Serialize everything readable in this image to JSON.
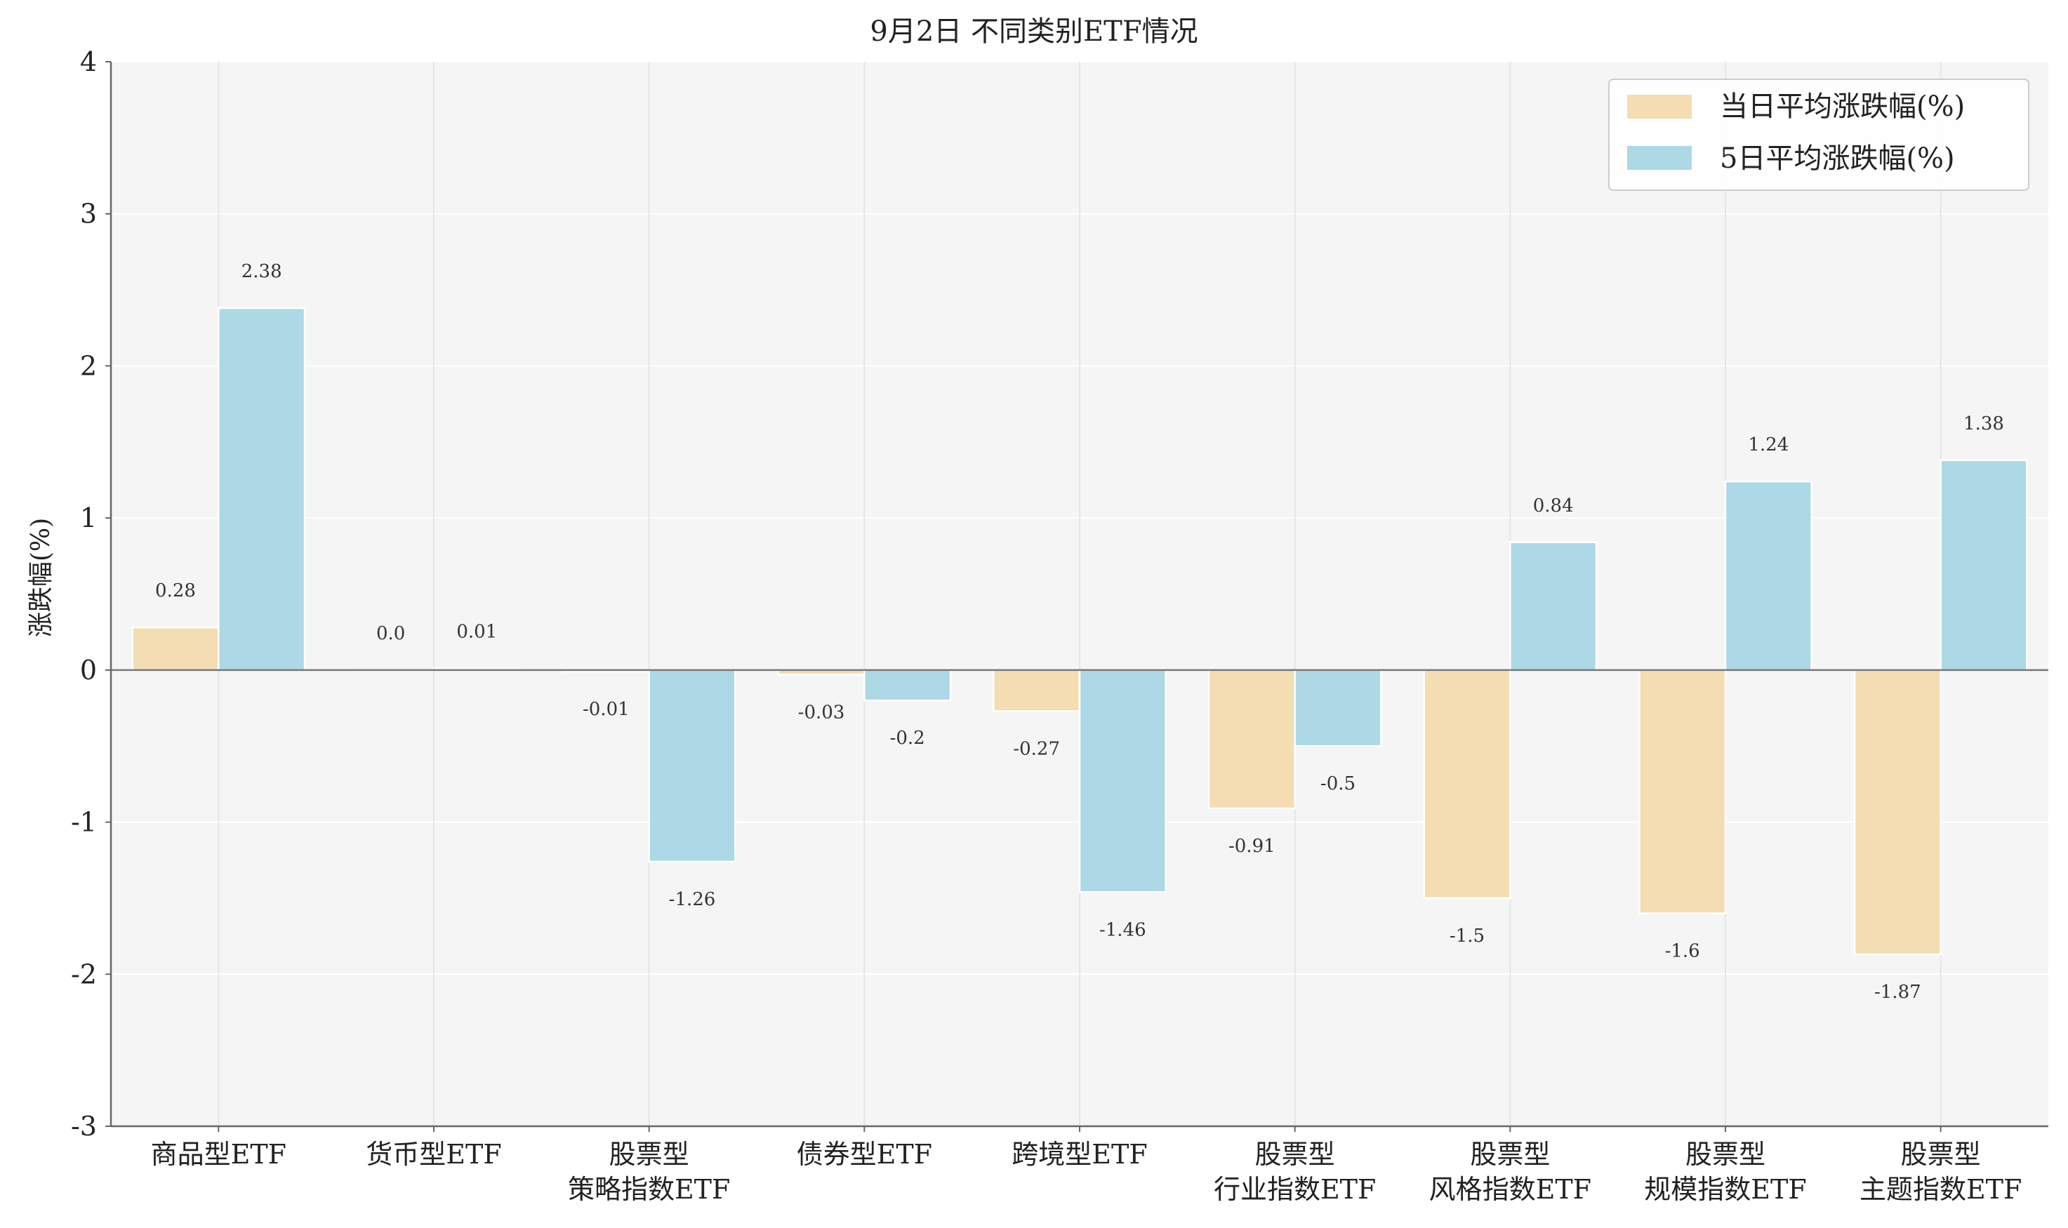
{
  "chart_data": {
    "type": "bar",
    "title": "9月2日 不同类别ETF情况",
    "xlabel": "",
    "ylabel": "涨跌幅(%)",
    "ylim": [
      -3,
      4
    ],
    "yticks": [
      "-3",
      "-2",
      "-1",
      "0",
      "1",
      "2",
      "3",
      "4"
    ],
    "grid": true,
    "legend_position": "top-right",
    "categories": [
      [
        "商品型ETF"
      ],
      [
        "货币型ETF"
      ],
      [
        "股票型",
        "策略指数ETF"
      ],
      [
        "债券型ETF"
      ],
      [
        "跨境型ETF"
      ],
      [
        "股票型",
        "行业指数ETF"
      ],
      [
        "股票型",
        "风格指数ETF"
      ],
      [
        "股票型",
        "规模指数ETF"
      ],
      [
        "股票型",
        "主题指数ETF"
      ]
    ],
    "series": [
      {
        "name": "当日平均涨跌幅(%)",
        "color": "#f4ddb2",
        "values": [
          0.28,
          0.0,
          -0.01,
          -0.03,
          -0.27,
          -0.91,
          -1.5,
          -1.6,
          -1.87
        ],
        "labels": [
          "0.28",
          "0.0",
          "-0.01",
          "-0.03",
          "-0.27",
          "-0.91",
          "-1.5",
          "-1.6",
          "-1.87"
        ]
      },
      {
        "name": "5日平均涨跌幅(%)",
        "color": "#add8e6",
        "values": [
          2.38,
          0.01,
          -1.26,
          -0.2,
          -1.46,
          -0.5,
          0.84,
          1.24,
          1.38
        ],
        "labels": [
          "2.38",
          "0.01",
          "-1.26",
          "-0.2",
          "-1.46",
          "-0.5",
          "0.84",
          "1.24",
          "1.38"
        ]
      }
    ]
  }
}
